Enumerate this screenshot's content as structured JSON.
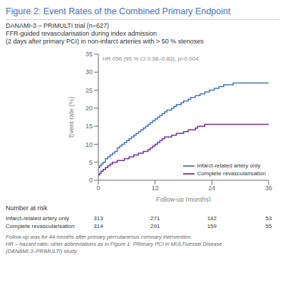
{
  "chart_data": {
    "type": "step",
    "title": "Figure 2: Event Rates of the Combined Primary Endpoint",
    "subtitle": [
      "DANAMI-3 – PRIMULTI trial (n=627)",
      "FFR-guided revascularisation during index admission",
      "(2 days after primary PCI) in non-infarct arteries with > 50 % stenoses"
    ],
    "annotations": [
      "HR 056 (95 % CI 0.38–0.83), p=0.004"
    ],
    "x_label": "Follow-up (months)",
    "y_label": "Event rate (%)",
    "xlim": [
      0,
      36
    ],
    "ylim": [
      0,
      35
    ],
    "xticks": [
      0,
      12,
      24,
      36
    ],
    "yticks": [
      0,
      5,
      10,
      15,
      20,
      25,
      30,
      35
    ],
    "grid": false,
    "legend": "lower right",
    "series": [
      {
        "name": "Infarct-related artery only",
        "color": "#4472C4",
        "x": [
          0,
          0.3,
          0.6,
          1.0,
          1.5,
          2.0,
          2.5,
          3.0,
          3.5,
          4.0,
          4.5,
          5.0,
          5.5,
          6.0,
          6.5,
          7.0,
          7.5,
          8.0,
          8.5,
          9.0,
          9.5,
          10.0,
          10.5,
          11.0,
          11.5,
          12.0,
          12.5,
          13.0,
          13.5,
          14.0,
          14.5,
          15.0,
          15.5,
          16.0,
          16.5,
          17.0,
          17.5,
          18.0,
          18.5,
          19.0,
          19.5,
          20.0,
          20.5,
          21.0,
          21.5,
          22.0,
          22.5,
          23.0,
          23.5,
          24.0,
          24.5,
          25.0,
          25.5,
          26.0,
          26.5,
          27.0,
          27.5,
          28.5,
          29.0,
          30.0,
          31.0,
          32.0,
          36.0
        ],
        "values": [
          3.5,
          4.0,
          4.5,
          5.0,
          6.0,
          6.5,
          7.0,
          7.5,
          8.0,
          9.0,
          9.5,
          10.0,
          10.5,
          11.0,
          11.5,
          12.0,
          12.5,
          13.0,
          13.5,
          14.0,
          14.5,
          15.0,
          15.5,
          16.0,
          16.5,
          17.0,
          17.5,
          18.0,
          18.5,
          19.0,
          19.5,
          19.5,
          20.0,
          20.5,
          21.0,
          21.0,
          21.5,
          22.0,
          22.0,
          22.5,
          23.0,
          23.0,
          23.5,
          23.5,
          24.0,
          24.0,
          24.5,
          24.5,
          25.0,
          25.0,
          25.5,
          25.5,
          26.0,
          26.0,
          26.5,
          26.5,
          26.5,
          27.0,
          27.0,
          27.0,
          27.0,
          27.0,
          27.0
        ]
      },
      {
        "name": "Complete revascularisation",
        "color": "#7030A0",
        "x": [
          0,
          0.3,
          0.6,
          1.0,
          1.5,
          2.0,
          2.5,
          3.0,
          3.5,
          4.0,
          4.5,
          5.0,
          5.5,
          6.0,
          6.5,
          7.0,
          7.5,
          8.0,
          8.5,
          9.0,
          9.5,
          10.0,
          10.5,
          11.0,
          11.5,
          12.0,
          12.5,
          13.0,
          13.5,
          14.0,
          14.5,
          15.0,
          15.5,
          16.0,
          16.5,
          17.0,
          17.5,
          18.0,
          18.5,
          19.0,
          19.5,
          20.0,
          20.5,
          21.0,
          21.5,
          22.0,
          22.5,
          23.0,
          23.5,
          24.0,
          24.5,
          25.0,
          26.0,
          27.0,
          28.0,
          30.0,
          36.0
        ],
        "values": [
          1.5,
          2.0,
          2.5,
          3.0,
          3.5,
          4.0,
          4.5,
          5.0,
          5.0,
          5.5,
          5.5,
          5.5,
          6.0,
          6.0,
          6.5,
          6.5,
          7.0,
          7.0,
          7.5,
          7.5,
          8.0,
          8.0,
          8.5,
          9.0,
          9.5,
          10.0,
          10.5,
          11.0,
          11.5,
          12.0,
          12.0,
          12.0,
          12.5,
          12.5,
          13.0,
          13.0,
          13.0,
          13.5,
          13.5,
          14.0,
          14.0,
          14.0,
          14.5,
          15.0,
          15.0,
          15.0,
          15.5,
          15.5,
          15.5,
          15.5,
          15.5,
          15.5,
          15.5,
          15.5,
          15.5,
          15.5,
          15.5
        ]
      }
    ],
    "number_at_risk": {
      "label": "Number at risk",
      "x": [
        0,
        12,
        24,
        36
      ],
      "rows": [
        {
          "name": "Infarct-related artery only",
          "values": [
            313,
            271,
            142,
            53
          ]
        },
        {
          "name": "Complete revascularisation",
          "values": [
            314,
            291,
            159,
            55
          ]
        }
      ]
    },
    "footnotes": [
      "Follow-up was for 44 months after primary percutaneous coronary intervention.",
      "HR – hazard ratio; other abbreviations as in Figure 1. PRimary PCI in MULTivessel Disease",
      "(DANAMI-3–PRIMULTI) study."
    ]
  }
}
